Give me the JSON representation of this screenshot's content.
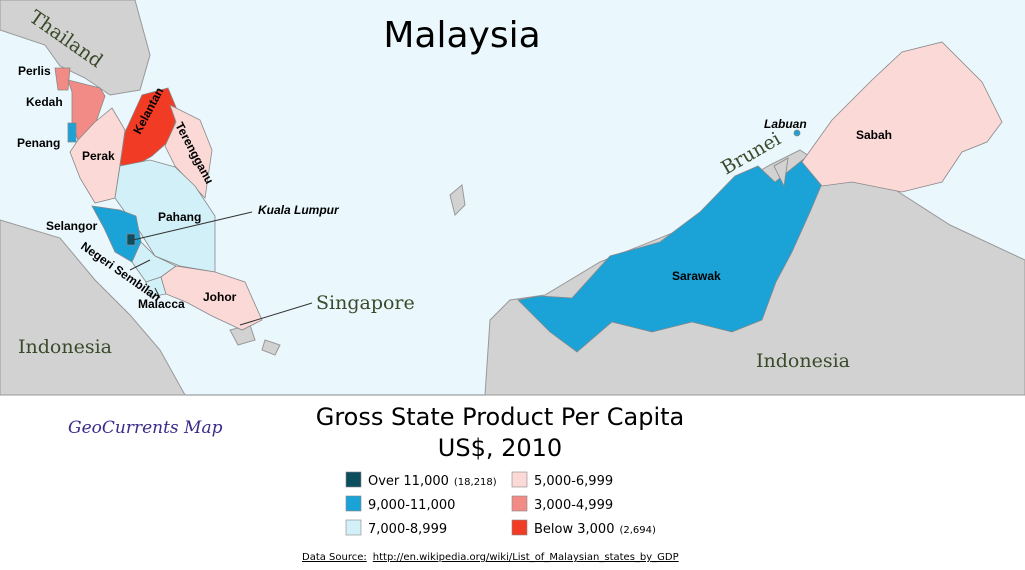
{
  "title": "Malaysia",
  "states": [
    {
      "label": "Perlis"
    },
    {
      "label": "Kedah"
    },
    {
      "label": "Penang"
    },
    {
      "label": "Perak"
    },
    {
      "label": "Kelantan"
    },
    {
      "label": "Terengganu"
    },
    {
      "label": "Pahang"
    },
    {
      "label": "Selangor"
    },
    {
      "label": "Kuala Lumpur"
    },
    {
      "label": "Negeri Sembilan"
    },
    {
      "label": "Malacca"
    },
    {
      "label": "Johor"
    },
    {
      "label": "Labuan"
    },
    {
      "label": "Sabah"
    },
    {
      "label": "Sarawak"
    }
  ],
  "places": [
    "Thailand",
    "Singapore",
    "Indonesia",
    "Indonesia",
    "Brunei"
  ],
  "credit": "GeoCurrents Map",
  "legend": {
    "title": "Gross State Product Per Capita",
    "subtitle": "US$, 2010",
    "items": [
      {
        "label": "Over 11,000",
        "note": "(18,218)",
        "color": "#0c4d5e"
      },
      {
        "label": "9,000-11,000",
        "color": "#1ba3d8"
      },
      {
        "label": "7,000-8,999",
        "color": "#d2f0f8"
      },
      {
        "label": "5,000-6,999",
        "color": "#fbd9d7"
      },
      {
        "label": "3,000-4,999",
        "color": "#f28b85"
      },
      {
        "label": "Below 3,000",
        "note": "(2,694)",
        "color": "#f23b25"
      }
    ]
  },
  "source": {
    "prefix": "Data Source:",
    "url": "http://en.wikipedia.org/wiki/List_of_Malaysian_states_by_GDP"
  }
}
